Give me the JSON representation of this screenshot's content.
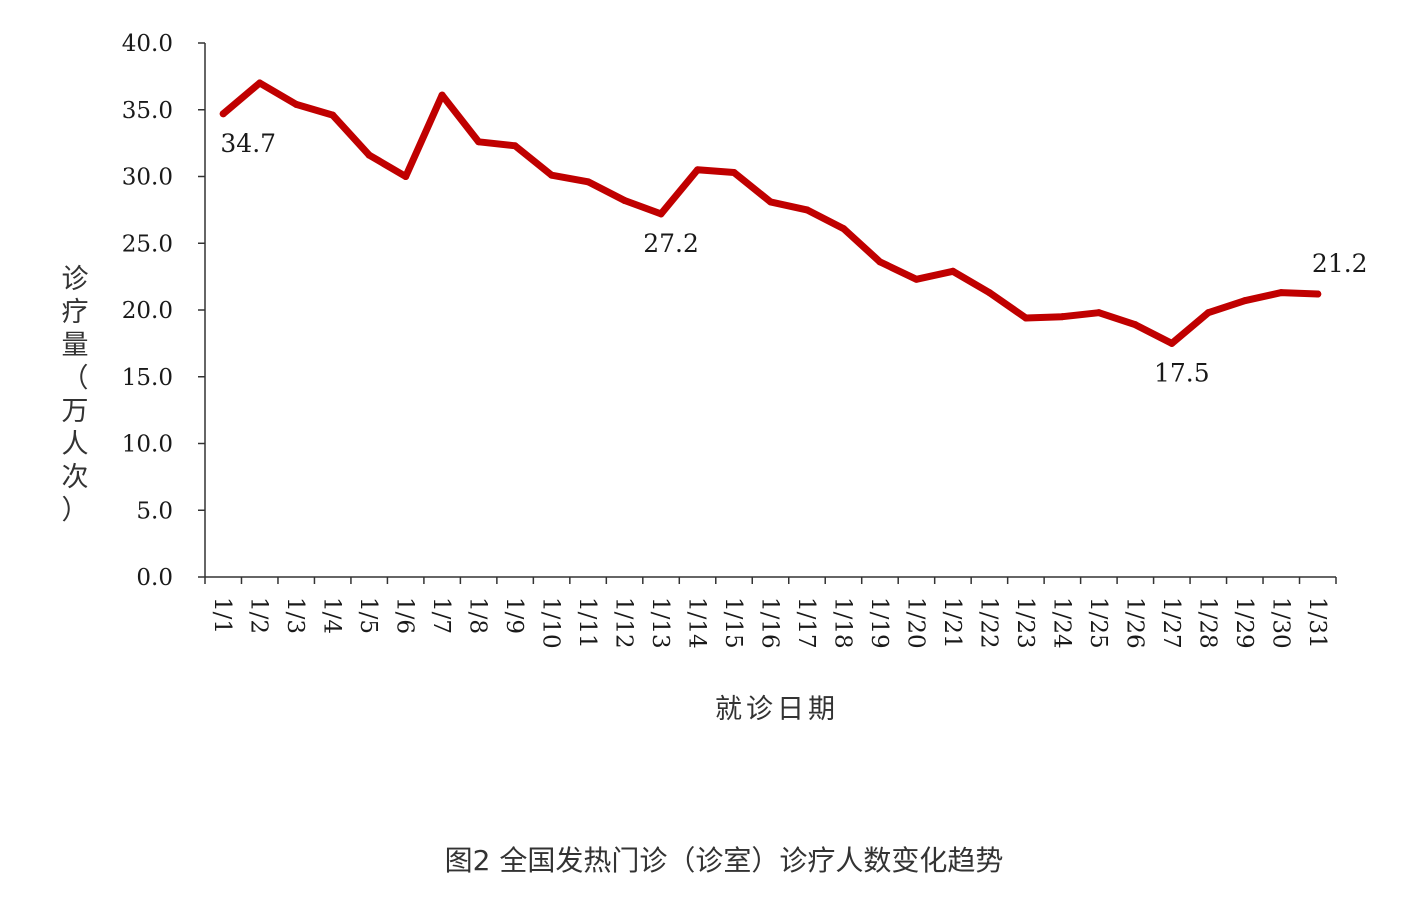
{
  "chart_data": {
    "type": "line",
    "title": "",
    "caption": "图2 全国发热门诊（诊室）诊疗人数变化趋势",
    "xlabel": "就诊日期",
    "ylabel_chars": [
      "诊",
      "疗",
      "量",
      "（",
      "万",
      "人",
      "次",
      "）"
    ],
    "ylim": [
      0,
      40
    ],
    "yticks": [
      "40.0",
      "35.0",
      "30.0",
      "25.0",
      "20.0",
      "15.0",
      "10.0",
      "5.0",
      "0.0"
    ],
    "ytick_values": [
      40,
      35,
      30,
      25,
      20,
      15,
      10,
      5,
      0
    ],
    "categories": [
      "1/1",
      "1/2",
      "1/3",
      "1/4",
      "1/5",
      "1/6",
      "1/7",
      "1/8",
      "1/9",
      "1/10",
      "1/11",
      "1/12",
      "1/13",
      "1/14",
      "1/15",
      "1/16",
      "1/17",
      "1/18",
      "1/19",
      "1/20",
      "1/21",
      "1/22",
      "1/23",
      "1/24",
      "1/25",
      "1/26",
      "1/27",
      "1/28",
      "1/29",
      "1/30",
      "1/31"
    ],
    "series": [
      {
        "values": [
          34.7,
          37.0,
          35.4,
          34.6,
          31.6,
          30.0,
          36.1,
          32.6,
          32.3,
          30.1,
          29.6,
          28.2,
          27.2,
          30.5,
          30.3,
          28.1,
          27.5,
          26.1,
          23.6,
          22.3,
          22.9,
          21.3,
          19.4,
          19.5,
          19.8,
          18.9,
          17.5,
          19.8,
          20.7,
          21.3,
          21.2
        ],
        "color": "#c00000"
      }
    ],
    "annotations": [
      {
        "index": 0,
        "text": "34.7",
        "anchor": "below"
      },
      {
        "index": 12,
        "text": "27.2",
        "anchor": "below"
      },
      {
        "index": 26,
        "text": "17.5",
        "anchor": "below"
      },
      {
        "index": 30,
        "text": "21.2",
        "anchor": "above"
      }
    ],
    "grid": false,
    "legend": "none"
  }
}
